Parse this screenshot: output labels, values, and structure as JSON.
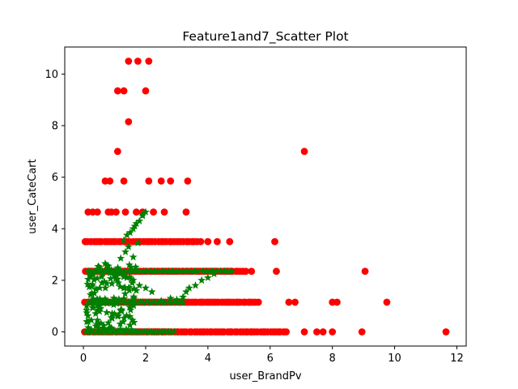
{
  "chart_data": {
    "type": "scatter",
    "title": "Feature1and7_Scatter Plot",
    "xlabel": "user_BrandPv",
    "ylabel": "user_CateCart",
    "xlim": [
      -0.6,
      12.3
    ],
    "ylim": [
      -0.55,
      11.05
    ],
    "xticks": [
      0,
      2,
      4,
      6,
      8,
      10,
      12
    ],
    "yticks": [
      0,
      2,
      4,
      6,
      8,
      10
    ],
    "grid": false,
    "colors": {
      "series_red": "#ff0000",
      "series_green": "#008000"
    },
    "series": [
      {
        "marker": "circle",
        "color": "#ff0000",
        "points": [
          [
            1.45,
            10.5
          ],
          [
            1.75,
            10.5
          ],
          [
            2.1,
            10.5
          ],
          [
            1.1,
            9.35
          ],
          [
            1.3,
            9.35
          ],
          [
            2.0,
            9.35
          ],
          [
            1.45,
            8.15
          ],
          [
            1.1,
            7.0
          ],
          [
            7.1,
            7.0
          ],
          [
            0.7,
            5.85
          ],
          [
            0.85,
            5.85
          ],
          [
            1.3,
            5.85
          ],
          [
            2.1,
            5.85
          ],
          [
            2.5,
            5.85
          ],
          [
            2.8,
            5.85
          ],
          [
            3.35,
            5.85
          ],
          [
            0.15,
            4.65
          ],
          [
            0.3,
            4.65
          ],
          [
            0.45,
            4.65
          ],
          [
            0.8,
            4.65
          ],
          [
            0.9,
            4.65
          ],
          [
            1.05,
            4.65
          ],
          [
            1.35,
            4.65
          ],
          [
            1.7,
            4.65
          ],
          [
            1.9,
            4.65
          ],
          [
            2.25,
            4.65
          ],
          [
            2.6,
            4.65
          ],
          [
            3.3,
            4.65
          ],
          [
            6.15,
            3.5
          ],
          [
            4.7,
            3.5
          ],
          [
            4.3,
            3.5
          ],
          [
            4.0,
            3.5
          ],
          [
            5.4,
            2.35
          ],
          [
            6.2,
            2.35
          ],
          [
            9.05,
            2.35
          ],
          [
            6.6,
            1.15
          ],
          [
            6.8,
            1.15
          ],
          [
            8.0,
            1.15
          ],
          [
            8.15,
            1.15
          ],
          [
            9.75,
            1.15
          ],
          [
            7.1,
            0.0
          ],
          [
            7.5,
            0.0
          ],
          [
            7.7,
            0.0
          ],
          [
            8.0,
            0.0
          ],
          [
            8.95,
            0.0
          ],
          [
            11.65,
            0.0
          ]
        ],
        "bands": [
          {
            "y": 3.5,
            "from": 0.05,
            "to": 3.75,
            "count": 42
          },
          {
            "y": 2.35,
            "from": 0.05,
            "to": 5.2,
            "count": 66
          },
          {
            "y": 1.15,
            "from": 0.05,
            "to": 5.6,
            "count": 72
          },
          {
            "y": 0.0,
            "from": 0.05,
            "to": 6.5,
            "count": 80
          }
        ]
      },
      {
        "marker": "star",
        "color": "#008000",
        "points": [
          [
            2.0,
            4.65
          ],
          [
            1.9,
            4.5
          ],
          [
            1.8,
            4.3
          ],
          [
            1.65,
            4.1
          ],
          [
            1.5,
            3.85
          ],
          [
            1.4,
            3.75
          ],
          [
            1.3,
            3.55
          ],
          [
            1.75,
            3.45
          ],
          [
            1.9,
            4.55
          ],
          [
            1.7,
            4.2
          ],
          [
            1.6,
            4.0
          ],
          [
            1.45,
            3.3
          ],
          [
            1.35,
            3.1
          ],
          [
            1.2,
            2.85
          ],
          [
            1.6,
            2.9
          ],
          [
            0.7,
            2.65
          ],
          [
            0.8,
            2.55
          ],
          [
            0.9,
            2.4
          ],
          [
            1.6,
            2.0
          ],
          [
            1.8,
            1.8
          ],
          [
            2.0,
            1.7
          ],
          [
            1.7,
            1.6
          ],
          [
            2.2,
            1.55
          ],
          [
            3.4,
            1.7
          ],
          [
            3.6,
            1.8
          ],
          [
            3.8,
            2.0
          ],
          [
            4.0,
            2.1
          ],
          [
            4.2,
            2.25
          ],
          [
            3.3,
            1.55
          ],
          [
            3.2,
            1.35
          ],
          [
            3.0,
            1.25
          ],
          [
            2.8,
            1.3
          ],
          [
            2.5,
            1.2
          ],
          [
            1.0,
            0.7
          ],
          [
            0.9,
            0.55
          ],
          [
            0.8,
            0.35
          ],
          [
            0.65,
            0.25
          ],
          [
            0.5,
            0.15
          ],
          [
            1.2,
            0.85
          ],
          [
            1.1,
            0.6
          ],
          [
            0.55,
            0.9
          ],
          [
            0.35,
            1.5
          ],
          [
            0.6,
            1.9
          ],
          [
            1.1,
            2.05
          ],
          [
            1.4,
            2.1
          ],
          [
            0.75,
            0.75
          ],
          [
            0.45,
            0.45
          ],
          [
            1.3,
            1.7
          ]
        ],
        "bands": [
          {
            "y": 2.35,
            "from": 0.15,
            "to": 4.75,
            "count": 40
          },
          {
            "y": 1.15,
            "from": 0.15,
            "to": 3.2,
            "count": 34
          },
          {
            "y": 0.0,
            "from": 0.1,
            "to": 2.9,
            "count": 40
          }
        ],
        "clusters": [
          {
            "x_from": 0.1,
            "x_to": 1.7,
            "y_from": 0.05,
            "y_to": 2.6,
            "count": 120
          }
        ]
      }
    ]
  }
}
